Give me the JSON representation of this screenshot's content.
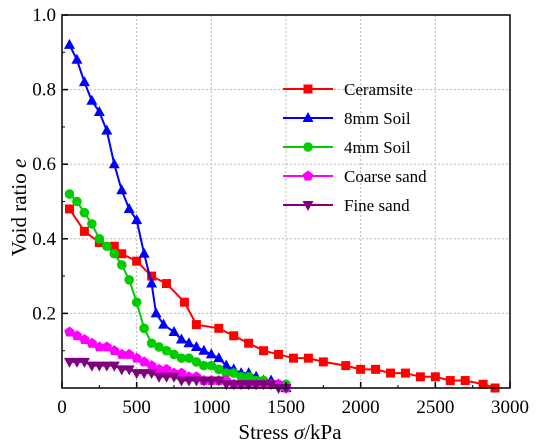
{
  "chart_data": {
    "type": "line",
    "title": "",
    "xlabel_prefix": "Stress ",
    "xlabel_symbol": "σ",
    "xlabel_suffix": "/kPa",
    "ylabel_prefix": "Void ratio ",
    "ylabel_symbol": "e",
    "xlim": [
      0,
      3000
    ],
    "ylim": [
      0,
      1.0
    ],
    "x_ticks": [
      "0",
      "500",
      "1000",
      "1500",
      "2000",
      "2500",
      "3000"
    ],
    "y_ticks": [
      "0.2",
      "0.4",
      "0.6",
      "0.8",
      "1.0"
    ],
    "grid": true,
    "legend_position": "upper-right",
    "series": [
      {
        "name": "Ceramsite",
        "color": "#ff0000",
        "marker": "square",
        "x": [
          50,
          150,
          250,
          350,
          400,
          500,
          600,
          700,
          820,
          900,
          1050,
          1150,
          1250,
          1350,
          1450,
          1550,
          1650,
          1750,
          1900,
          2000,
          2100,
          2200,
          2300,
          2400,
          2500,
          2600,
          2700,
          2820,
          2900
        ],
        "y": [
          0.48,
          0.42,
          0.39,
          0.38,
          0.36,
          0.34,
          0.3,
          0.28,
          0.23,
          0.17,
          0.16,
          0.14,
          0.12,
          0.1,
          0.09,
          0.08,
          0.08,
          0.07,
          0.06,
          0.05,
          0.05,
          0.04,
          0.04,
          0.03,
          0.03,
          0.02,
          0.02,
          0.01,
          0.0
        ]
      },
      {
        "name": "8mm Soil",
        "color": "#0000ff",
        "marker": "triangle-up",
        "x": [
          50,
          100,
          150,
          200,
          250,
          300,
          350,
          400,
          450,
          500,
          550,
          600,
          630,
          680,
          750,
          800,
          850,
          900,
          950,
          1000,
          1050,
          1100,
          1150,
          1200,
          1250,
          1300,
          1350,
          1400,
          1450,
          1500
        ],
        "y": [
          0.92,
          0.88,
          0.82,
          0.77,
          0.74,
          0.69,
          0.6,
          0.53,
          0.48,
          0.45,
          0.36,
          0.28,
          0.2,
          0.17,
          0.15,
          0.13,
          0.12,
          0.11,
          0.1,
          0.09,
          0.08,
          0.06,
          0.05,
          0.04,
          0.04,
          0.03,
          0.02,
          0.02,
          0.01,
          0.0
        ]
      },
      {
        "name": "4mm Soil",
        "color": "#00cc00",
        "marker": "circle",
        "x": [
          50,
          100,
          150,
          200,
          250,
          300,
          350,
          400,
          450,
          500,
          550,
          600,
          650,
          700,
          750,
          800,
          850,
          900,
          950,
          1000,
          1050,
          1100,
          1150,
          1200,
          1250,
          1300,
          1350,
          1400,
          1450,
          1500
        ],
        "y": [
          0.52,
          0.5,
          0.47,
          0.44,
          0.4,
          0.38,
          0.36,
          0.33,
          0.29,
          0.23,
          0.16,
          0.12,
          0.11,
          0.1,
          0.09,
          0.08,
          0.08,
          0.07,
          0.06,
          0.06,
          0.05,
          0.04,
          0.04,
          0.03,
          0.03,
          0.02,
          0.02,
          0.01,
          0.01,
          0.01
        ]
      },
      {
        "name": "Coarse sand",
        "color": "#ff00ff",
        "marker": "pentagon",
        "x": [
          50,
          100,
          150,
          200,
          250,
          300,
          350,
          400,
          450,
          500,
          550,
          600,
          650,
          700,
          750,
          800,
          850,
          900,
          950,
          1000,
          1050,
          1100,
          1150,
          1200,
          1250,
          1300,
          1350,
          1400,
          1450,
          1500
        ],
        "y": [
          0.15,
          0.14,
          0.13,
          0.12,
          0.11,
          0.11,
          0.1,
          0.09,
          0.09,
          0.08,
          0.07,
          0.06,
          0.05,
          0.05,
          0.04,
          0.04,
          0.03,
          0.03,
          0.02,
          0.02,
          0.02,
          0.02,
          0.01,
          0.01,
          0.01,
          0.01,
          0.01,
          0.01,
          0.01,
          0.0
        ]
      },
      {
        "name": "Fine sand",
        "color": "#800080",
        "marker": "triangle-down",
        "x": [
          50,
          100,
          150,
          200,
          250,
          300,
          350,
          400,
          450,
          500,
          550,
          600,
          650,
          700,
          750,
          800,
          850,
          900,
          950,
          1000,
          1050,
          1100,
          1150,
          1200,
          1250,
          1300,
          1350,
          1400,
          1450,
          1500
        ],
        "y": [
          0.07,
          0.07,
          0.07,
          0.06,
          0.06,
          0.06,
          0.06,
          0.05,
          0.05,
          0.04,
          0.04,
          0.04,
          0.03,
          0.03,
          0.03,
          0.02,
          0.02,
          0.02,
          0.02,
          0.02,
          0.02,
          0.01,
          0.01,
          0.01,
          0.01,
          0.01,
          0.01,
          0.01,
          0.0,
          0.0
        ]
      }
    ]
  }
}
